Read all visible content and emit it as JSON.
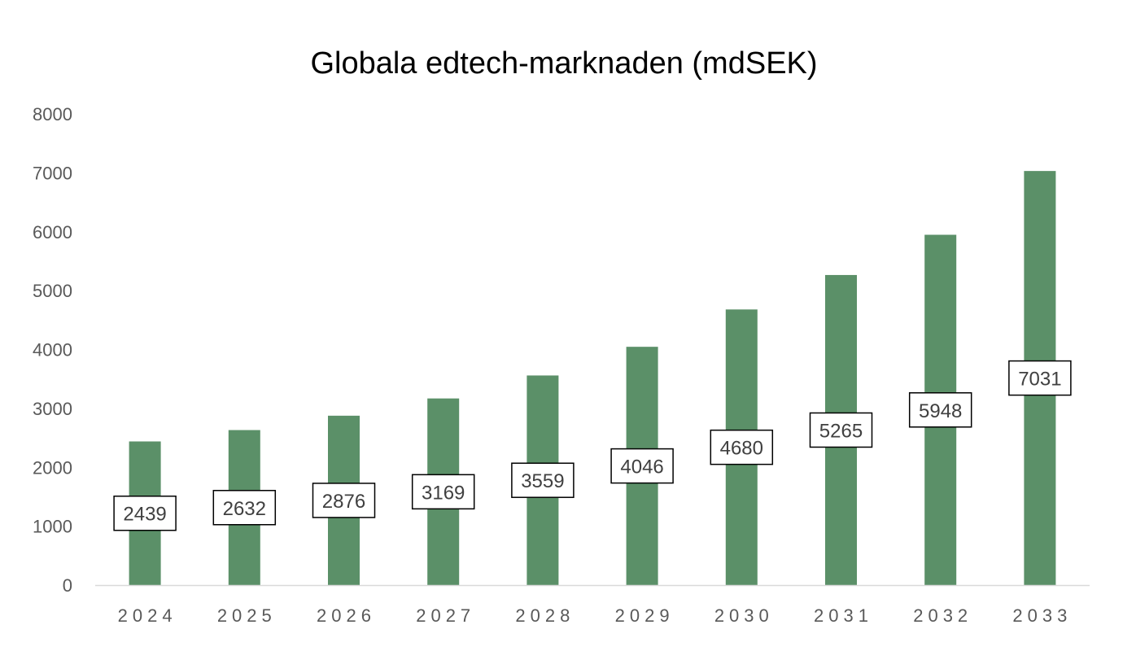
{
  "chart_data": {
    "type": "bar",
    "title": "Globala edtech-marknaden (mdSEK)",
    "xlabel": "",
    "ylabel": "",
    "categories": [
      "2024",
      "2025",
      "2026",
      "2027",
      "2028",
      "2029",
      "2030",
      "2031",
      "2032",
      "2033"
    ],
    "values": [
      2439,
      2632,
      2876,
      3169,
      3559,
      4046,
      4680,
      5265,
      5948,
      7031
    ],
    "ylim": [
      0,
      8000
    ],
    "yticks": [
      "0",
      "1000",
      "2000",
      "3000",
      "4000",
      "5000",
      "6000",
      "7000",
      "8000"
    ],
    "grid": false,
    "legend": "none",
    "data_labels": "inside-middle, boxed",
    "colors": {
      "bar": "#5B9068",
      "axis": "#D9D9D9",
      "label_box_border": "#000000",
      "label_box_fill": "#FFFFFF"
    }
  }
}
